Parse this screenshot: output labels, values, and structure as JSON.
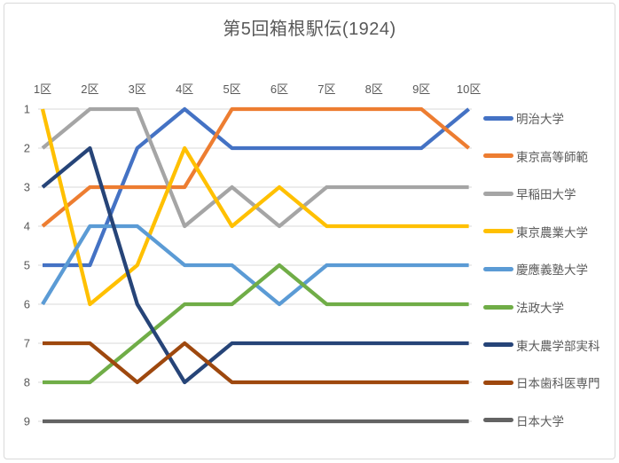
{
  "frame": {
    "background": "#FFFFFF",
    "border_color": "#D9D9D9",
    "text_color": "#595959",
    "gridline_color": "#D9D9D9"
  },
  "chart_data": {
    "type": "line",
    "title": "第5回箱根駅伝(1924)",
    "xlabel": "",
    "ylabel": "",
    "categories": [
      "1区",
      "2区",
      "3区",
      "4区",
      "5区",
      "6区",
      "7区",
      "8区",
      "9区",
      "10区"
    ],
    "y_axis": {
      "ticks": [
        "1",
        "2",
        "3",
        "4",
        "5",
        "6",
        "7",
        "8",
        "9"
      ],
      "min": 1,
      "max": 9,
      "direction": "rank-1-at-top"
    },
    "x_axis_position": "top",
    "legend_position": "right",
    "grid": true,
    "series": [
      {
        "name": "明治大学",
        "color": "#4472C4",
        "values": [
          5,
          5,
          2,
          1,
          2,
          2,
          2,
          2,
          2,
          1
        ]
      },
      {
        "name": "東京高等師範",
        "color": "#ED7D31",
        "values": [
          4,
          3,
          3,
          3,
          1,
          1,
          1,
          1,
          1,
          2
        ]
      },
      {
        "name": "早稲田大学",
        "color": "#A5A5A5",
        "values": [
          2,
          1,
          1,
          4,
          3,
          4,
          3,
          3,
          3,
          3
        ]
      },
      {
        "name": "東京農業大学",
        "color": "#FFC000",
        "values": [
          1,
          6,
          5,
          2,
          4,
          3,
          4,
          4,
          4,
          4
        ]
      },
      {
        "name": "慶應義塾大学",
        "color": "#5B9BD5",
        "values": [
          6,
          4,
          4,
          5,
          5,
          6,
          5,
          5,
          5,
          5
        ]
      },
      {
        "name": "法政大学",
        "color": "#70AD47",
        "values": [
          8,
          8,
          7,
          6,
          6,
          5,
          6,
          6,
          6,
          6
        ]
      },
      {
        "name": "東大農学部実科",
        "color": "#264478",
        "values": [
          3,
          2,
          6,
          8,
          7,
          7,
          7,
          7,
          7,
          7
        ]
      },
      {
        "name": "日本歯科医専門",
        "color": "#9E480E",
        "values": [
          7,
          7,
          8,
          7,
          8,
          8,
          8,
          8,
          8,
          8
        ]
      },
      {
        "name": "日本大学",
        "color": "#636363",
        "values": [
          9,
          9,
          9,
          9,
          9,
          9,
          9,
          9,
          9,
          9
        ]
      }
    ]
  }
}
